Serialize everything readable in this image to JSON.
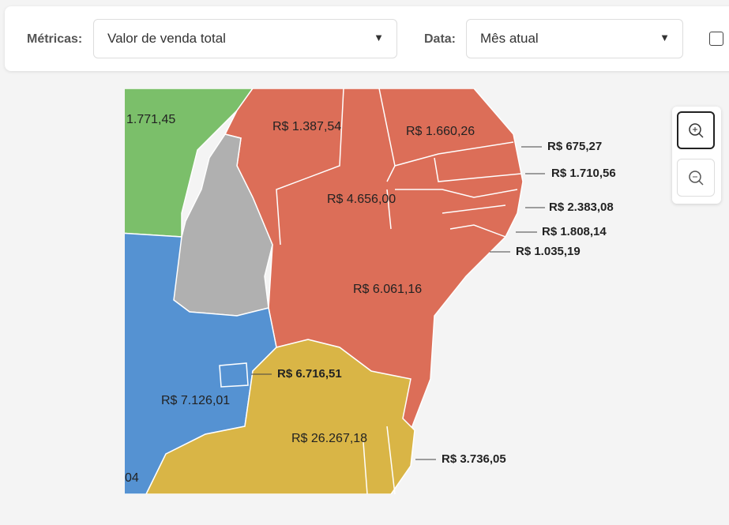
{
  "filters": {
    "metric_label": "Métricas:",
    "metric_value": "Valor de venda total",
    "date_label": "Data:",
    "date_value": "Mês atual"
  },
  "map": {
    "labels": [
      "1.771,45",
      "R$ 1.387,54",
      "R$ 1.660,26",
      "R$ 675,27",
      "R$ 1.710,56",
      "R$ 4.656,00",
      "R$ 2.383,08",
      "R$ 1.808,14",
      "R$ 1.035,19",
      "R$ 6.061,16",
      "R$ 6.716,51",
      "R$ 7.126,01",
      "R$ 26.267,18",
      "R$ 3.736,05",
      "04"
    ]
  }
}
